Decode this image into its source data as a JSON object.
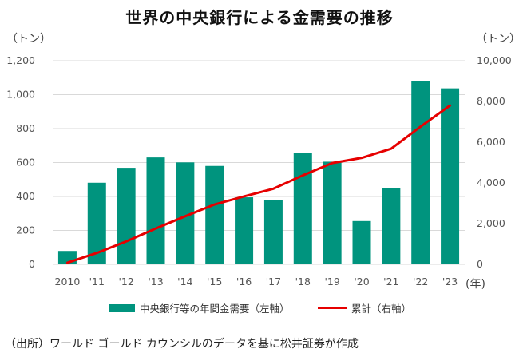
{
  "title": "世界の中央銀行による金需要の推移",
  "units": {
    "left": "（トン）",
    "right": "（トン）",
    "year": "(年)"
  },
  "legend": {
    "bar_label": "中央銀行等の年間金需要（左軸）",
    "line_label": "累計（右軸）"
  },
  "source": "（出所）ワールド ゴールド カウンシルのデータを基に松井証券が作成",
  "colors": {
    "bar": "#00947e",
    "line": "#e60000",
    "grid": "#d9d9d9"
  },
  "chart_data": {
    "type": "bar",
    "categories": [
      "2010",
      "'11",
      "'12",
      "'13",
      "'14",
      "'15",
      "'16",
      "'17",
      "'18",
      "'19",
      "'20",
      "'21",
      "'22",
      "'23"
    ],
    "series": [
      {
        "name": "中央銀行等の年間金需要（左軸）",
        "type": "bar",
        "axis": "left",
        "values": [
          79,
          481,
          569,
          630,
          601,
          580,
          395,
          379,
          656,
          605,
          255,
          450,
          1082,
          1037
        ]
      },
      {
        "name": "累計（右軸）",
        "type": "line",
        "axis": "right",
        "values": [
          79,
          560,
          1129,
          1759,
          2360,
          2940,
          3335,
          3714,
          4370,
          4975,
          5230,
          5680,
          6762,
          7799
        ]
      }
    ],
    "ylim_left": [
      0,
      1200
    ],
    "yticks_left": [
      "0",
      "200",
      "400",
      "600",
      "800",
      "1,000",
      "1,200"
    ],
    "ylim_right": [
      0,
      10000
    ],
    "yticks_right": [
      "0",
      "2,000",
      "4,000",
      "6,000",
      "8,000",
      "10,000"
    ],
    "grid": true,
    "legend_position": "bottom"
  }
}
